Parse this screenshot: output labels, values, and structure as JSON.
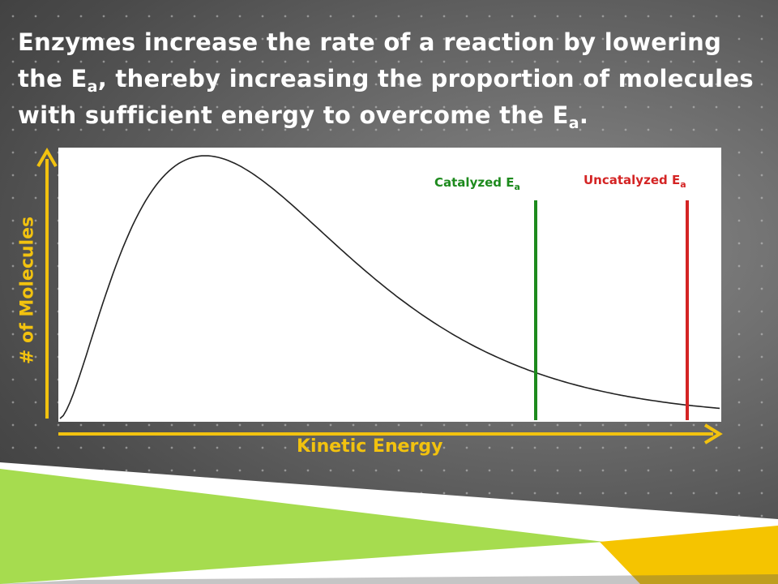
{
  "title": {
    "part1": "Enzymes increase the rate of a reaction by lowering the E",
    "sub1": "a",
    "part2": ", thereby increasing the proportion of molecules with sufficient energy to overcome the E",
    "sub2": "a",
    "part3": "."
  },
  "diagram": {
    "y_axis_label": "# of Molecules",
    "x_axis_label": "Kinetic Energy",
    "catalyzed": {
      "label": "Catalyzed E",
      "sub": "a",
      "color": "#1d8a1d"
    },
    "uncatalyzed": {
      "label": "Uncatalyzed E",
      "sub": "a",
      "color": "#d42424"
    },
    "axis_color": "#f2c20f",
    "curve_color": "#222222",
    "background": {
      "gradient_colors": [
        "#8a8a8a",
        "#3a3a3a"
      ]
    },
    "decor_colors": {
      "green": "#8fd63a",
      "yellow": "#f5c400",
      "white": "#ffffff"
    }
  }
}
